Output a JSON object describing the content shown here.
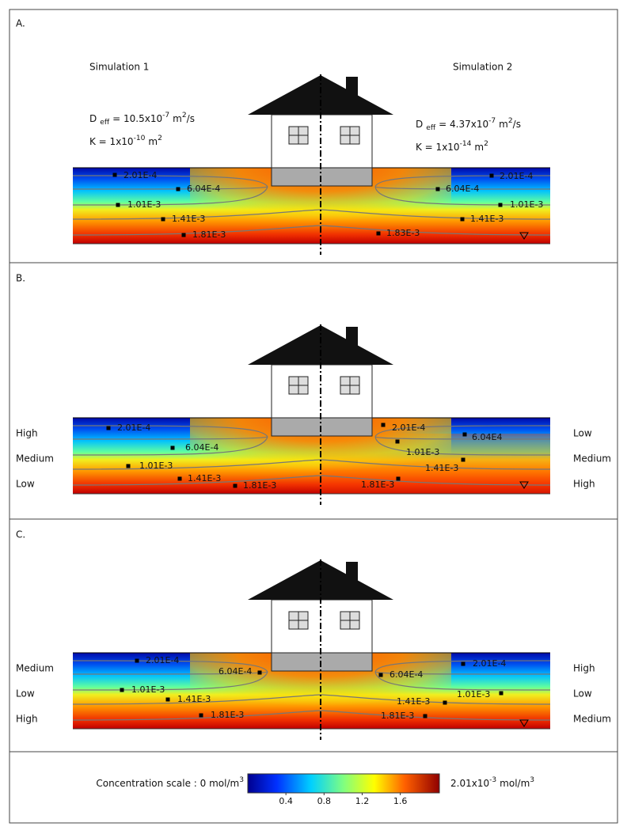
{
  "panels": [
    {
      "label": "A.",
      "simulations": [
        {
          "title": "Simulation 1",
          "d_eff": {
            "symbol": "D",
            "subscript": "eff",
            "text": "= 10.5x10",
            "exponent": "-7",
            "unit": "m",
            "unit_exponent": "2",
            "unit_tail": "/s"
          },
          "k": {
            "text": "K = 1x10",
            "exponent": "-10",
            "unit": "m",
            "unit_exponent": "2"
          }
        },
        {
          "title": "Simulation 2",
          "d_eff": {
            "symbol": "D",
            "subscript": "eff",
            "text": "= 4.37x10",
            "exponent": "-7",
            "unit": "m",
            "unit_exponent": "2",
            "unit_tail": "/s"
          },
          "k": {
            "text": "K = 1x10",
            "exponent": "-14",
            "unit": "m",
            "unit_exponent": "2"
          }
        }
      ],
      "contours": {
        "left": [
          "2.01E-4",
          "6.04E-4",
          "1.01E-3",
          "1.41E-3",
          "1.81E-3"
        ],
        "right": [
          "2.01E-4",
          "6.04E-4",
          "1.01E-3",
          "1.41E-3",
          "1.83E-3"
        ]
      }
    },
    {
      "label": "B.",
      "layers": {
        "left": [
          "High",
          "Medium",
          "Low"
        ],
        "right": [
          "Low",
          "Medium",
          "High"
        ]
      },
      "contours": {
        "left": [
          "2.01E-4",
          "6.04E-4",
          "1.01E-3",
          "1.41E-3",
          "1.81E-3"
        ],
        "right": [
          "2.01E-4",
          "6.04E4",
          "1.01E-3",
          "1.41E-3",
          "1.81E-3"
        ]
      }
    },
    {
      "label": "C.",
      "layers": {
        "left": [
          "Medium",
          "Low",
          "High"
        ],
        "right": [
          "High",
          "Low",
          "Medium"
        ]
      },
      "contours": {
        "left": [
          "2.01E-4",
          "6.04E-4",
          "1.01E-3",
          "1.41E-3",
          "1.81E-3"
        ],
        "right": [
          "2.01E-4",
          "6.04E-4",
          "1.01E-3",
          "1.41E-3",
          "1.81E-3"
        ]
      }
    }
  ],
  "colorbar": {
    "label": {
      "text": "Concentration scale :  0 mol/m",
      "exponent": "3"
    },
    "max_label": {
      "text": "2.01x10",
      "exponent": "-3",
      "unit": "mol/m",
      "unit_exponent": "3"
    },
    "lim": [
      0,
      2.01
    ],
    "ticks": [
      0.4,
      0.8,
      1.2,
      1.6
    ]
  }
}
